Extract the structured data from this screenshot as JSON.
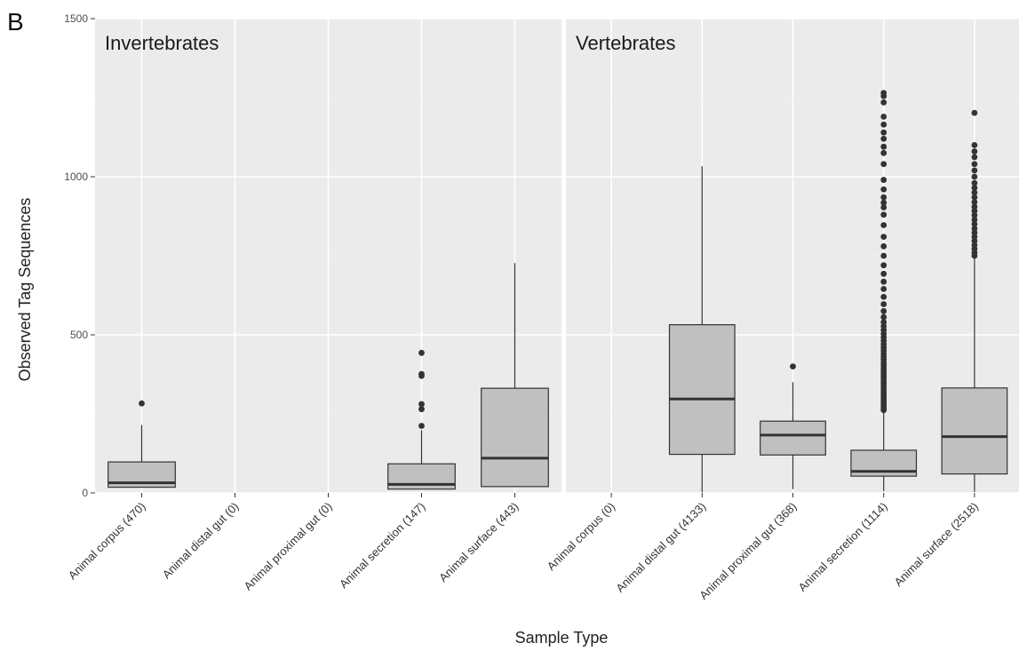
{
  "figure_label": "B",
  "chart_data": {
    "type": "box",
    "xlabel": "Sample Type",
    "ylabel": "Observed Tag Sequences",
    "ylim": [
      0,
      1500
    ],
    "yticks": [
      0,
      500,
      1000,
      1500
    ],
    "grid": true,
    "panels": [
      {
        "title": "Invertebrates",
        "categories": [
          {
            "label": "Animal corpus (470)",
            "box": {
              "lower": 18,
              "q1": 18,
              "median": 32,
              "q3": 98,
              "upper": 215
            },
            "outliers": [
              283
            ]
          },
          {
            "label": "Animal distal gut (0)",
            "box": null,
            "outliers": []
          },
          {
            "label": "Animal proximal gut (0)",
            "box": null,
            "outliers": []
          },
          {
            "label": "Animal secretion (147)",
            "box": {
              "lower": 12,
              "q1": 12,
              "median": 27,
              "q3": 92,
              "upper": 198
            },
            "outliers": [
              212,
              265,
              281,
              370,
              376,
              443
            ]
          },
          {
            "label": "Animal surface (443)",
            "box": {
              "lower": 20,
              "q1": 20,
              "median": 110,
              "q3": 331,
              "upper": 727
            },
            "outliers": []
          }
        ]
      },
      {
        "title": "Vertebrates",
        "categories": [
          {
            "label": "Animal corpus (0)",
            "box": null,
            "outliers": []
          },
          {
            "label": "Animal distal gut (4133)",
            "box": {
              "lower": 2,
              "q1": 122,
              "median": 297,
              "q3": 532,
              "upper": 1033
            },
            "outliers": []
          },
          {
            "label": "Animal proximal gut (368)",
            "box": {
              "lower": 12,
              "q1": 120,
              "median": 183,
              "q3": 227,
              "upper": 350
            },
            "outliers": [
              400
            ]
          },
          {
            "label": "Animal secretion (1114)",
            "box": {
              "lower": 5,
              "q1": 53,
              "median": 68,
              "q3": 135,
              "upper": 255
            },
            "outliers": [
              262,
              268,
              275,
              282,
              290,
              298,
              305,
              312,
              320,
              328,
              336,
              345,
              353,
              362,
              370,
              378,
              387,
              395,
              404,
              413,
              422,
              431,
              440,
              450,
              460,
              470,
              481,
              492,
              503,
              515,
              527,
              540,
              556,
              575,
              597,
              620,
              645,
              668,
              693,
              720,
              750,
              780,
              810,
              847,
              880,
              903,
              918,
              935,
              960,
              990,
              1040,
              1075,
              1095,
              1120,
              1140,
              1165,
              1190,
              1235,
              1255,
              1265
            ]
          },
          {
            "label": "Animal surface (2518)",
            "box": {
              "lower": 3,
              "q1": 60,
              "median": 178,
              "q3": 332,
              "upper": 742
            },
            "outliers": [
              750,
              760,
              772,
              784,
              797,
              810,
              823,
              836,
              850,
              864,
              878,
              892,
              905,
              920,
              935,
              950,
              965,
              980,
              1000,
              1020,
              1040,
              1062,
              1080,
              1100,
              1202
            ]
          }
        ]
      }
    ]
  }
}
